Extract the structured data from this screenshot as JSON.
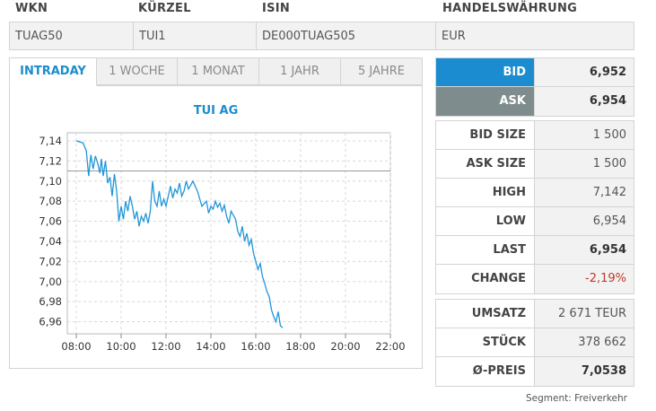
{
  "identifiers": {
    "wkn": {
      "label": "WKN",
      "value": "TUAG50"
    },
    "kuerzel": {
      "label": "KÜRZEL",
      "value": "TUI1"
    },
    "isin": {
      "label": "ISIN",
      "value": "DE000TUAG505"
    },
    "waehrung": {
      "label": "HANDELSWÄHRUNG",
      "value": "EUR"
    }
  },
  "tabs": [
    {
      "label": "INTRADAY",
      "active": true
    },
    {
      "label": "1 WOCHE",
      "active": false
    },
    {
      "label": "1 MONAT",
      "active": false
    },
    {
      "label": "1 JAHR",
      "active": false
    },
    {
      "label": "5 JAHRE",
      "active": false
    }
  ],
  "quote": {
    "bid": {
      "label": "BID",
      "value": "6,952"
    },
    "ask": {
      "label": "ASK",
      "value": "6,954"
    }
  },
  "stats": [
    {
      "label": "BID SIZE",
      "value": "1 500"
    },
    {
      "label": "ASK SIZE",
      "value": "1 500"
    },
    {
      "label": "HIGH",
      "value": "7,142"
    },
    {
      "label": "LOW",
      "value": "6,954"
    },
    {
      "label": "LAST",
      "value": "6,954"
    },
    {
      "label": "CHANGE",
      "value": "-2,19%"
    }
  ],
  "volume": [
    {
      "label": "UMSATZ",
      "value": "2 671 TEUR"
    },
    {
      "label": "STÜCK",
      "value": "378 662"
    },
    {
      "label": "Ø-PREIS",
      "value": "7,0538"
    }
  ],
  "segment": "Segment: Freiverkehr",
  "colors": {
    "accent": "#1a8ccf",
    "ask": "#7f8c8d",
    "negative": "#c0392b",
    "line": "#2196d9"
  },
  "chart_data": {
    "type": "line",
    "title": "TUI AG",
    "xlabel": "",
    "ylabel": "",
    "x_ticks": [
      "08:00",
      "10:00",
      "12:00",
      "14:00",
      "16:00",
      "18:00",
      "20:00",
      "22:00"
    ],
    "y_ticks": [
      "7,14",
      "7,12",
      "7,10",
      "7,08",
      "7,06",
      "7,04",
      "7,02",
      "7,00",
      "6,98",
      "6,96"
    ],
    "xlim": [
      7.6,
      22.0
    ],
    "ylim": [
      6.948,
      7.148
    ],
    "reference_line": 7.11,
    "grid": true,
    "series": [
      {
        "x": [
          8.0,
          8.3,
          8.45,
          8.55,
          8.65,
          8.75,
          8.85,
          8.95,
          9.05,
          9.12,
          9.2,
          9.3,
          9.4,
          9.5,
          9.6,
          9.7,
          9.8,
          9.9,
          10.0,
          10.1,
          10.2,
          10.3,
          10.4,
          10.5,
          10.6,
          10.7,
          10.8,
          10.9,
          11.0,
          11.1,
          11.2,
          11.3,
          11.4,
          11.5,
          11.6,
          11.7,
          11.8,
          11.9,
          12.0,
          12.1,
          12.2,
          12.3,
          12.4,
          12.5,
          12.6,
          12.7,
          12.8,
          12.9,
          13.0,
          13.2,
          13.4,
          13.6,
          13.8,
          13.9,
          14.0,
          14.1,
          14.2,
          14.3,
          14.4,
          14.5,
          14.6,
          14.7,
          14.8,
          14.9,
          15.0,
          15.1,
          15.2,
          15.3,
          15.4,
          15.5,
          15.6,
          15.7,
          15.8,
          15.9,
          16.0,
          16.1,
          16.2,
          16.3,
          16.4,
          16.5,
          16.6,
          16.7,
          16.8,
          16.9,
          17.0,
          17.1,
          17.2
        ],
        "y": [
          7.14,
          7.138,
          7.13,
          7.105,
          7.126,
          7.112,
          7.125,
          7.118,
          7.108,
          7.122,
          7.105,
          7.12,
          7.098,
          7.104,
          7.085,
          7.107,
          7.09,
          7.06,
          7.075,
          7.062,
          7.08,
          7.07,
          7.085,
          7.075,
          7.062,
          7.07,
          7.055,
          7.065,
          7.06,
          7.068,
          7.058,
          7.07,
          7.1,
          7.08,
          7.075,
          7.09,
          7.075,
          7.082,
          7.075,
          7.085,
          7.095,
          7.083,
          7.092,
          7.088,
          7.098,
          7.085,
          7.09,
          7.1,
          7.092,
          7.1,
          7.09,
          7.075,
          7.08,
          7.068,
          7.075,
          7.072,
          7.08,
          7.074,
          7.078,
          7.07,
          7.076,
          7.065,
          7.058,
          7.07,
          7.066,
          7.062,
          7.05,
          7.045,
          7.055,
          7.04,
          7.048,
          7.036,
          7.042,
          7.028,
          7.02,
          7.012,
          7.018,
          7.005,
          6.998,
          6.99,
          6.985,
          6.972,
          6.965,
          6.96,
          6.97,
          6.956,
          6.954
        ]
      }
    ]
  }
}
